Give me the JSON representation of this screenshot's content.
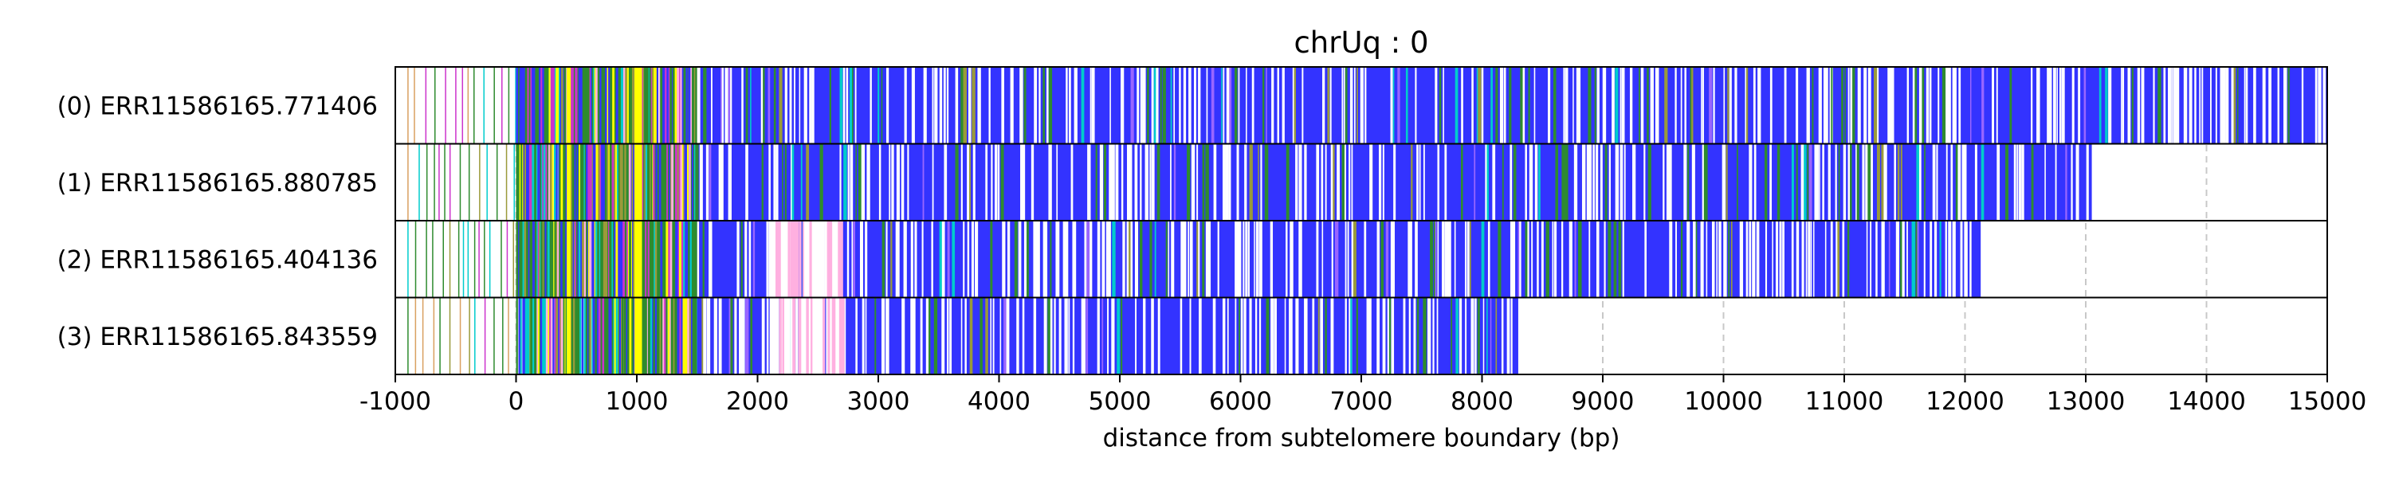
{
  "chart_data": {
    "type": "heatmap",
    "title": "chrUq : 0",
    "xlabel": "distance from subtelomere boundary (bp)",
    "xlim": [
      -1000,
      15000
    ],
    "x_ticks": [
      -1000,
      0,
      1000,
      2000,
      3000,
      4000,
      5000,
      6000,
      7000,
      8000,
      9000,
      10000,
      11000,
      12000,
      13000,
      14000,
      15000
    ],
    "x_tick_labels": [
      "-1000",
      "0",
      "1000",
      "2000",
      "3000",
      "4000",
      "5000",
      "6000",
      "7000",
      "8000",
      "9000",
      "10000",
      "11000",
      "12000",
      "13000",
      "14000",
      "15000"
    ],
    "grid": "vertical dashed at x ticks",
    "colors": {
      "blue": "#3333ff",
      "green": "#2e8b2e",
      "yellow": "#ffff00",
      "cyan": "#00cccc",
      "magenta": "#cc33cc",
      "pink": "#ffb0e0",
      "olive": "#9a9a3a",
      "orange": "#d9a060",
      "violet": "#9966ff",
      "grid": "#c8c8c8"
    },
    "rows": [
      {
        "label": "(0) ERR11586165.771406",
        "end": 15000
      },
      {
        "label": "(1) ERR11586165.880785",
        "end": 13050
      },
      {
        "label": "(2) ERR11586165.404136",
        "end": 12130
      },
      {
        "label": "(3) ERR11586165.843559",
        "end": 8300
      }
    ]
  }
}
